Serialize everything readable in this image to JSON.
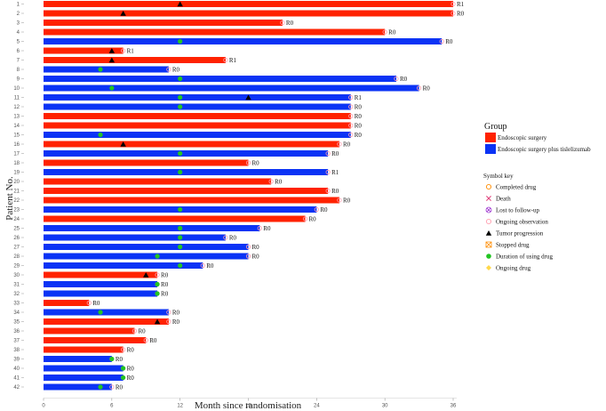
{
  "chart_data": {
    "type": "swimmer",
    "xlabel": "Month since randomisation",
    "ylabel": "Patient No.",
    "xlim": [
      0,
      36
    ],
    "xticks": [
      0,
      6,
      12,
      18,
      24,
      30,
      36
    ],
    "groups": [
      {
        "key": "ES",
        "name": "Endoscopic surgery",
        "color": "#ff2200"
      },
      {
        "key": "EST",
        "name": "Endoscopic surgery plus tislelizumab",
        "color": "#0b33f5"
      }
    ],
    "patients": [
      {
        "id": "1",
        "group": "ES",
        "end": 36,
        "label": "R1",
        "progression": 12,
        "drug": null
      },
      {
        "id": "2",
        "group": "ES",
        "end": 36,
        "label": "R0",
        "progression": 7,
        "drug": null
      },
      {
        "id": "3",
        "group": "ES",
        "end": 21,
        "label": "R0",
        "progression": null,
        "drug": null
      },
      {
        "id": "4",
        "group": "ES",
        "end": 30,
        "label": "R0",
        "progression": null,
        "drug": null
      },
      {
        "id": "5",
        "group": "EST",
        "end": 35,
        "label": "R0",
        "progression": null,
        "drug": 12
      },
      {
        "id": "6",
        "group": "ES",
        "end": 7,
        "label": "R1",
        "progression": 6,
        "drug": null
      },
      {
        "id": "7",
        "group": "ES",
        "end": 16,
        "label": "R1",
        "progression": 6,
        "drug": null
      },
      {
        "id": "8",
        "group": "EST",
        "end": 11,
        "label": "R0",
        "progression": null,
        "drug": 5
      },
      {
        "id": "9",
        "group": "EST",
        "end": 31,
        "label": "R0",
        "progression": null,
        "drug": 12
      },
      {
        "id": "10",
        "group": "EST",
        "end": 33,
        "label": "R0",
        "progression": null,
        "drug": 6
      },
      {
        "id": "11",
        "group": "EST",
        "end": 27,
        "label": "R1",
        "progression": 18,
        "drug": 12
      },
      {
        "id": "12",
        "group": "EST",
        "end": 27,
        "label": "R0",
        "progression": null,
        "drug": 12
      },
      {
        "id": "13",
        "group": "ES",
        "end": 27,
        "label": "R0",
        "progression": null,
        "drug": null
      },
      {
        "id": "14",
        "group": "ES",
        "end": 27,
        "label": "R0",
        "progression": null,
        "drug": null
      },
      {
        "id": "15",
        "group": "EST",
        "end": 27,
        "label": "R0",
        "progression": null,
        "drug": 5
      },
      {
        "id": "16",
        "group": "ES",
        "end": 26,
        "label": "R0",
        "progression": 7,
        "drug": null
      },
      {
        "id": "17",
        "group": "EST",
        "end": 25,
        "label": "R0",
        "progression": null,
        "drug": 12
      },
      {
        "id": "18",
        "group": "ES",
        "end": 18,
        "label": "R0",
        "progression": null,
        "drug": null
      },
      {
        "id": "19",
        "group": "EST",
        "end": 25,
        "label": "R1",
        "progression": null,
        "drug": 12
      },
      {
        "id": "20",
        "group": "ES",
        "end": 20,
        "label": "R0",
        "progression": null,
        "drug": null
      },
      {
        "id": "21",
        "group": "ES",
        "end": 25,
        "label": "R0",
        "progression": null,
        "drug": null
      },
      {
        "id": "22",
        "group": "ES",
        "end": 26,
        "label": "R0",
        "progression": null,
        "drug": null
      },
      {
        "id": "23",
        "group": "EST",
        "end": 24,
        "label": "R0",
        "progression": null,
        "drug": 12
      },
      {
        "id": "24",
        "group": "ES",
        "end": 23,
        "label": "R0",
        "progression": null,
        "drug": null
      },
      {
        "id": "25",
        "group": "EST",
        "end": 19,
        "label": "R0",
        "progression": null,
        "drug": 12
      },
      {
        "id": "26",
        "group": "EST",
        "end": 16,
        "label": "R0",
        "progression": null,
        "drug": 12
      },
      {
        "id": "27",
        "group": "EST",
        "end": 18,
        "label": "R0",
        "progression": null,
        "drug": 12
      },
      {
        "id": "28",
        "group": "EST",
        "end": 18,
        "label": "R0",
        "progression": null,
        "drug": 10
      },
      {
        "id": "29",
        "group": "EST",
        "end": 14,
        "label": "R0",
        "progression": null,
        "drug": 12
      },
      {
        "id": "30",
        "group": "ES",
        "end": 10,
        "label": "R0",
        "progression": 9,
        "drug": null
      },
      {
        "id": "31",
        "group": "EST",
        "end": 10,
        "label": "R0",
        "progression": null,
        "drug": 10
      },
      {
        "id": "32",
        "group": "EST",
        "end": 10,
        "label": "R0",
        "progression": null,
        "drug": 10
      },
      {
        "id": "33",
        "group": "ES",
        "end": 4,
        "label": "R0",
        "progression": null,
        "drug": null
      },
      {
        "id": "34",
        "group": "EST",
        "end": 11,
        "label": "R0",
        "progression": null,
        "drug": 5
      },
      {
        "id": "35",
        "group": "ES",
        "end": 11,
        "label": "R0",
        "progression": 10,
        "drug": null
      },
      {
        "id": "36",
        "group": "ES",
        "end": 8,
        "label": "R0",
        "progression": null,
        "drug": null
      },
      {
        "id": "37",
        "group": "ES",
        "end": 9,
        "label": "R0",
        "progression": null,
        "drug": null
      },
      {
        "id": "38",
        "group": "ES",
        "end": 7,
        "label": "R0",
        "progression": null,
        "drug": null
      },
      {
        "id": "39",
        "group": "EST",
        "end": 6,
        "label": "R0",
        "progression": null,
        "drug": 6
      },
      {
        "id": "40",
        "group": "EST",
        "end": 7,
        "label": "R0",
        "progression": null,
        "drug": 7
      },
      {
        "id": "41",
        "group": "EST",
        "end": 7,
        "label": "R0",
        "progression": null,
        "drug": 7
      },
      {
        "id": "42",
        "group": "EST",
        "end": 6,
        "label": "R0",
        "progression": null,
        "drug": 5
      }
    ],
    "legend": {
      "group_title": "Group",
      "symbol_title": "Symbol key",
      "symbols": [
        {
          "name": "Completed drug",
          "shape": "circle-open",
          "color": "#ff8c00"
        },
        {
          "name": "Death",
          "shape": "cross",
          "color": "#e0407a"
        },
        {
          "name": "Lost to follow-up",
          "shape": "circle-x",
          "color": "#9b30d0"
        },
        {
          "name": "Ongoing observation",
          "shape": "circle-open",
          "color": "#ff9fb0"
        },
        {
          "name": "Tumor progression",
          "shape": "triangle",
          "color": "#000000"
        },
        {
          "name": "Stopped drug",
          "shape": "square-x",
          "color": "#ff8c00"
        },
        {
          "name": "Duration of using drug",
          "shape": "dot",
          "color": "#22c422"
        },
        {
          "name": "Ongoing drug",
          "shape": "diamond",
          "color": "#ffd84a"
        }
      ]
    }
  }
}
